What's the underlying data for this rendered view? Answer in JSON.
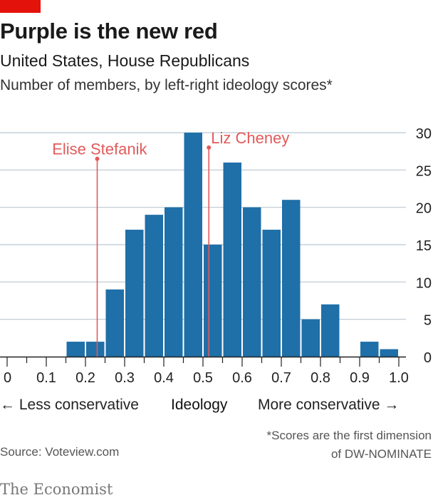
{
  "title": "Purple is the new red",
  "subtitle": "United States, House Republicans",
  "description": "Number of members, by left-right ideology scores*",
  "axis_words": {
    "left": "← Less conservative",
    "center": "Ideology",
    "right": "More conservative →"
  },
  "source": "Source: Voteview.com",
  "footnote": {
    "line1": "*Scores are the first dimension",
    "line2": "of DW-NOMINATE"
  },
  "brand": "The Economist",
  "colors": {
    "bar": "#1f6fa8",
    "annotation": "#e35a5a",
    "grid": "#b9c7d3",
    "brand_red": "#e3120b"
  },
  "chart_data": {
    "type": "bar",
    "title": "Purple is the new red",
    "subtitle": "United States, House Republicans",
    "xlabel": "Ideology",
    "ylabel": "",
    "bin_width": 0.05,
    "xlim": [
      0,
      1.0
    ],
    "ylim": [
      0,
      30
    ],
    "x_ticks": [
      "0",
      "0.1",
      "0.2",
      "0.3",
      "0.4",
      "0.5",
      "0.6",
      "0.7",
      "0.8",
      "0.9",
      "1.0"
    ],
    "y_ticks": [
      "0",
      "5",
      "10",
      "15",
      "20",
      "25",
      "30"
    ],
    "y_axis_side": "right",
    "grid": true,
    "bins": [
      {
        "x": 0.15,
        "value": 2
      },
      {
        "x": 0.2,
        "value": 2
      },
      {
        "x": 0.25,
        "value": 9
      },
      {
        "x": 0.3,
        "value": 17
      },
      {
        "x": 0.35,
        "value": 19
      },
      {
        "x": 0.4,
        "value": 20
      },
      {
        "x": 0.45,
        "value": 30
      },
      {
        "x": 0.5,
        "value": 15
      },
      {
        "x": 0.55,
        "value": 26
      },
      {
        "x": 0.6,
        "value": 20
      },
      {
        "x": 0.65,
        "value": 17
      },
      {
        "x": 0.7,
        "value": 21
      },
      {
        "x": 0.75,
        "value": 5
      },
      {
        "x": 0.8,
        "value": 7
      },
      {
        "x": 0.9,
        "value": 2
      },
      {
        "x": 0.95,
        "value": 1
      }
    ],
    "annotations": [
      {
        "label": "Elise Stefanik",
        "x": 0.23,
        "y": 26.5
      },
      {
        "label": "Liz Cheney",
        "x": 0.515,
        "y": 28
      }
    ]
  }
}
